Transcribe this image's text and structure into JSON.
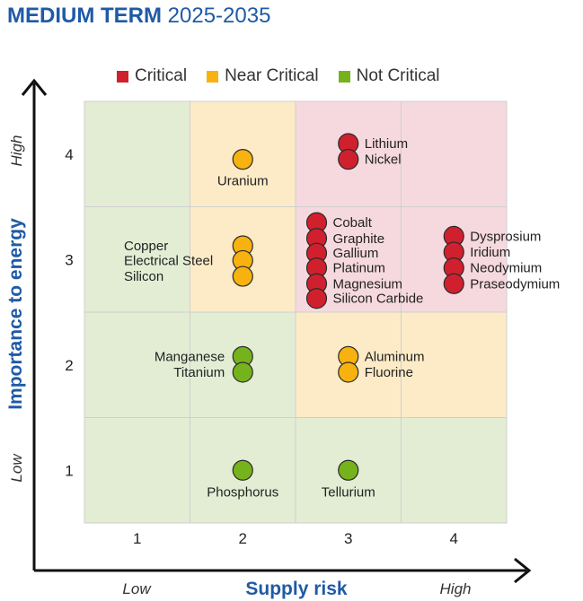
{
  "title": {
    "bold": "MEDIUM TERM",
    "light": "2025-2035"
  },
  "colors": {
    "critical": "#d0202e",
    "near_critical": "#f7b20f",
    "not_critical": "#76b21c",
    "bg_critical": "#f6d9de",
    "bg_near": "#fcebc6",
    "bg_not": "#e3edd4",
    "axis_blue": "#1f5aa6"
  },
  "legend": [
    {
      "label": "Critical",
      "key": "critical"
    },
    {
      "label": "Near Critical",
      "key": "near_critical"
    },
    {
      "label": "Not Critical",
      "key": "not_critical"
    }
  ],
  "chart_data": {
    "type": "scatter",
    "title": "MEDIUM TERM 2025-2035",
    "xlabel": "Supply risk",
    "ylabel": "Importance to energy",
    "x_ticks": [
      "1",
      "2",
      "3",
      "4"
    ],
    "y_ticks": [
      "1",
      "2",
      "3",
      "4"
    ],
    "x_low_label": "Low",
    "x_high_label": "High",
    "y_low_label": "Low",
    "y_high_label": "High",
    "xlim": [
      0.5,
      4.5
    ],
    "ylim": [
      0.5,
      4.5
    ],
    "grid": [
      [
        "not_critical",
        "not_critical",
        "not_critical",
        "not_critical"
      ],
      [
        "not_critical",
        "not_critical",
        "near_critical",
        "near_critical"
      ],
      [
        "not_critical",
        "near_critical",
        "critical",
        "critical"
      ],
      [
        "not_critical",
        "near_critical",
        "critical",
        "critical"
      ]
    ],
    "points": [
      {
        "name": "Lithium",
        "x": 3,
        "y": 4.1,
        "category": "critical"
      },
      {
        "name": "Nickel",
        "x": 3,
        "y": 3.95,
        "category": "critical"
      },
      {
        "name": "Uranium",
        "x": 2,
        "y": 3.95,
        "category": "near_critical"
      },
      {
        "name": "Cobalt",
        "x": 2.7,
        "y": 3.35,
        "category": "critical"
      },
      {
        "name": "Graphite",
        "x": 2.7,
        "y": 3.2,
        "category": "critical"
      },
      {
        "name": "Gallium",
        "x": 2.7,
        "y": 3.06,
        "category": "critical"
      },
      {
        "name": "Platinum",
        "x": 2.7,
        "y": 2.92,
        "category": "critical"
      },
      {
        "name": "Magnesium",
        "x": 2.7,
        "y": 2.77,
        "category": "critical"
      },
      {
        "name": "Silicon Carbide",
        "x": 2.7,
        "y": 2.63,
        "category": "critical"
      },
      {
        "name": "Dysprosium",
        "x": 4,
        "y": 3.22,
        "category": "critical"
      },
      {
        "name": "Iridium",
        "x": 4,
        "y": 3.07,
        "category": "critical"
      },
      {
        "name": "Neodymium",
        "x": 4,
        "y": 2.92,
        "category": "critical"
      },
      {
        "name": "Praseodymium",
        "x": 4,
        "y": 2.77,
        "category": "critical"
      },
      {
        "name": "Copper",
        "x": 2,
        "y": 3.13,
        "category": "near_critical"
      },
      {
        "name": "Electrical Steel",
        "x": 2,
        "y": 2.99,
        "category": "near_critical"
      },
      {
        "name": "Silicon",
        "x": 2,
        "y": 2.84,
        "category": "near_critical"
      },
      {
        "name": "Manganese",
        "x": 2,
        "y": 2.08,
        "category": "not_critical"
      },
      {
        "name": "Titanium",
        "x": 2,
        "y": 1.93,
        "category": "not_critical"
      },
      {
        "name": "Aluminum",
        "x": 3,
        "y": 2.08,
        "category": "near_critical"
      },
      {
        "name": "Fluorine",
        "x": 3,
        "y": 1.93,
        "category": "near_critical"
      },
      {
        "name": "Phosphorus",
        "x": 2,
        "y": 1.0,
        "category": "not_critical"
      },
      {
        "name": "Tellurium",
        "x": 3,
        "y": 1.0,
        "category": "not_critical"
      }
    ]
  }
}
